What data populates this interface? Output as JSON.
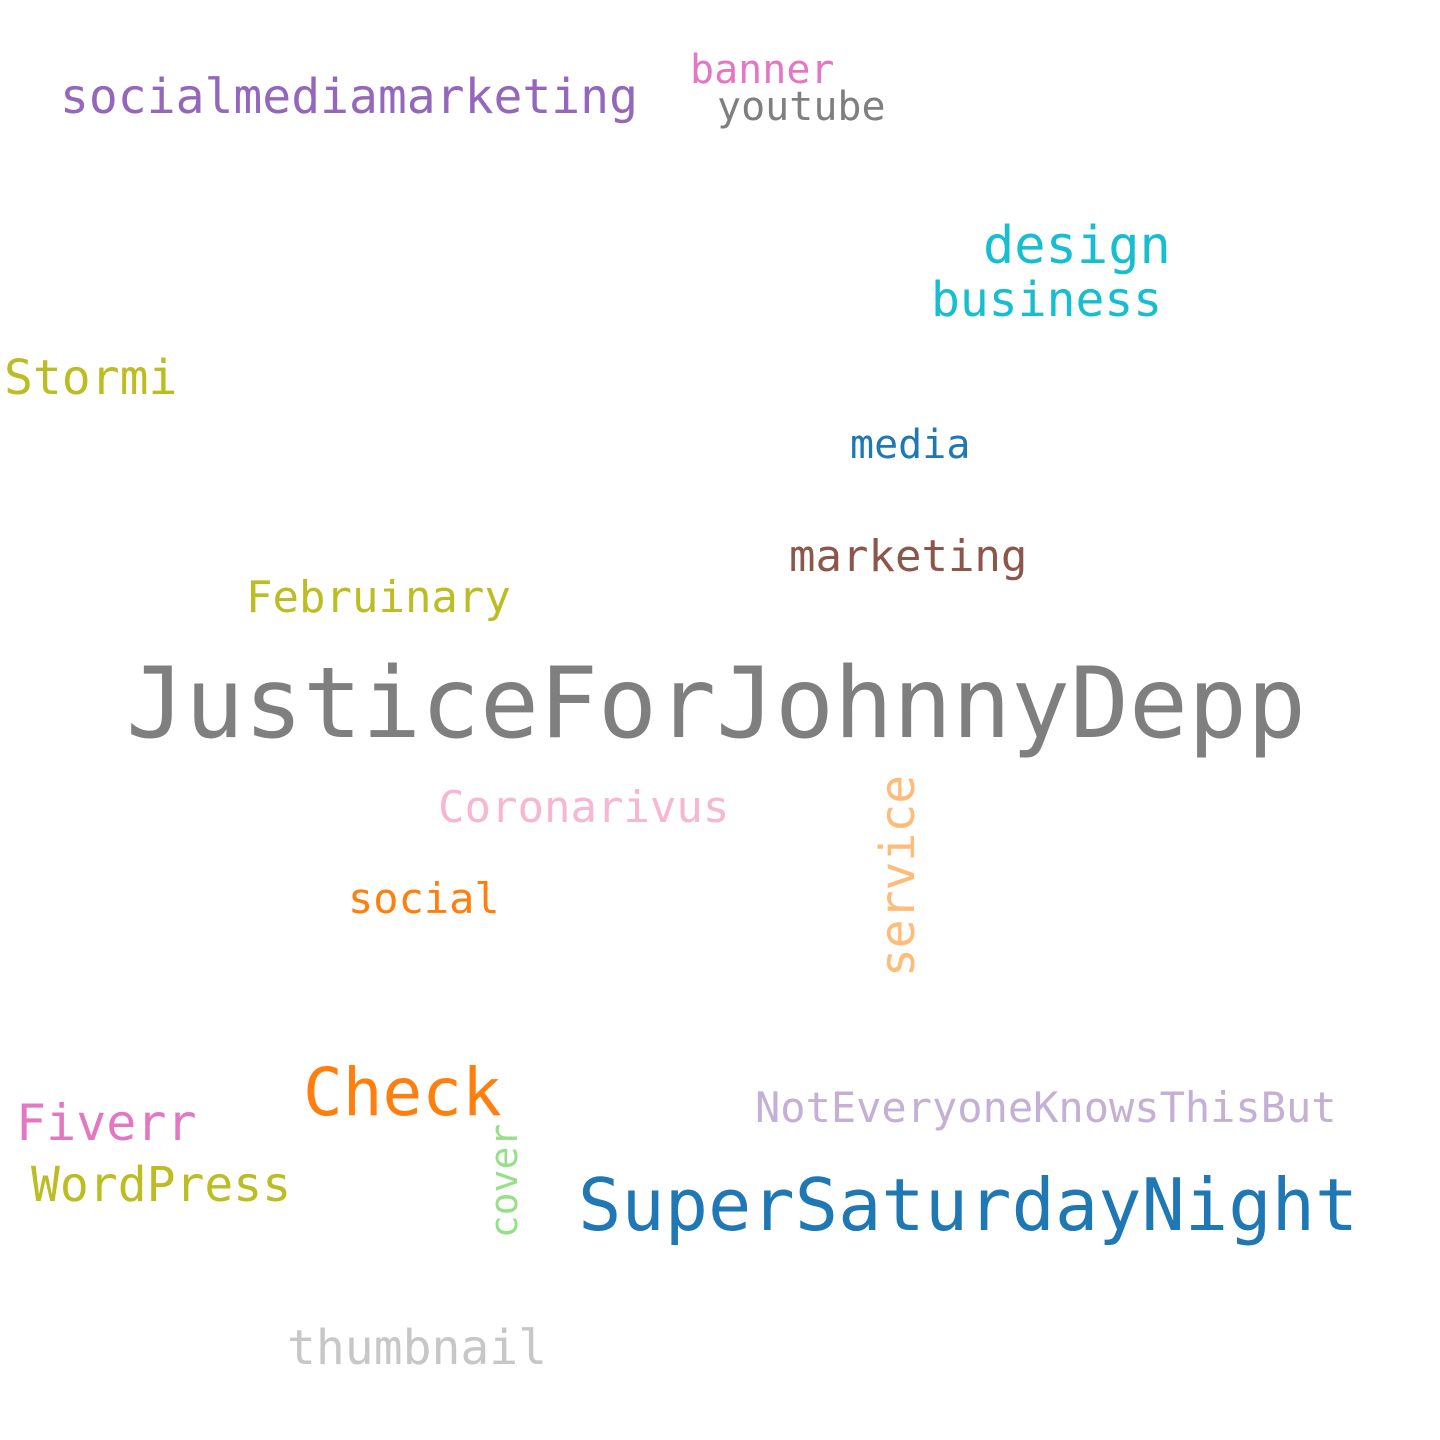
{
  "words": [
    {
      "text": "socialmediamarketing",
      "color": "#9467bd"
    },
    {
      "text": "banner",
      "color": "#e377c2"
    },
    {
      "text": "youtube",
      "color": "#7f7f7f"
    },
    {
      "text": "design",
      "color": "#17becf"
    },
    {
      "text": "business",
      "color": "#17becf"
    },
    {
      "text": "Stormi",
      "color": "#bcbd22"
    },
    {
      "text": "media",
      "color": "#1f77b4"
    },
    {
      "text": "marketing",
      "color": "#8c564b"
    },
    {
      "text": "Februinary",
      "color": "#bcbd22"
    },
    {
      "text": "JusticeForJohnnyDepp",
      "color": "#7f7f7f"
    },
    {
      "text": "Coronarivus",
      "color": "#f7b6d2"
    },
    {
      "text": "service",
      "color": "#ffbb78",
      "orientation": "vertical"
    },
    {
      "text": "social",
      "color": "#ff7f0e"
    },
    {
      "text": "Check",
      "color": "#ff7f0e"
    },
    {
      "text": "NotEveryoneKnowsThisBut",
      "color": "#c5b0d5"
    },
    {
      "text": "Fiverr",
      "color": "#e377c2"
    },
    {
      "text": "WordPress",
      "color": "#bcbd22"
    },
    {
      "text": "cover",
      "color": "#98df8a",
      "orientation": "vertical"
    },
    {
      "text": "SuperSaturdayNight",
      "color": "#1f77b4"
    },
    {
      "text": "thumbnail",
      "color": "#c7c7c7"
    }
  ]
}
